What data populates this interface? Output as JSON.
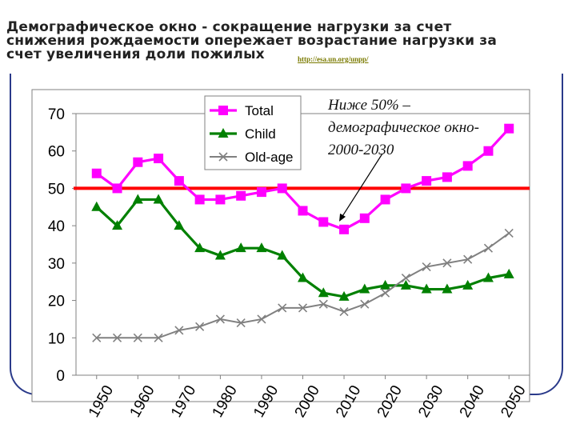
{
  "title": "Демографическое окно - сокращение нагрузки за счет снижения рождаемости опережает возрастание нагрузки за счет увеличения доли пожилых",
  "title_lines": [
    "Демографическое окно - сокращение нагрузки за счет",
    "снижения рождаемости опережает возрастание нагрузки за",
    "счет увеличения доли пожилых"
  ],
  "source_link": "http://esa.un.org/unpp/",
  "annotation": "Ниже 50% –\nдемографическое окно-\n2000-2030",
  "colors": {
    "total": "#ff00ff",
    "child": "#008000",
    "old_age": "#808080",
    "threshold": "#ff0000",
    "frame": "#2a3a8a"
  },
  "chart_data": {
    "type": "line",
    "x": [
      1950,
      1955,
      1960,
      1965,
      1970,
      1975,
      1980,
      1985,
      1990,
      1995,
      2000,
      2005,
      2010,
      2015,
      2020,
      2025,
      2030,
      2035,
      2040,
      2045,
      2050
    ],
    "series": [
      {
        "name": "Total",
        "marker": "square",
        "values": [
          54,
          50,
          57,
          58,
          52,
          47,
          47,
          48,
          49,
          50,
          44,
          41,
          39,
          42,
          47,
          50,
          52,
          53,
          56,
          60,
          66
        ]
      },
      {
        "name": "Child",
        "marker": "triangle",
        "values": [
          45,
          40,
          47,
          47,
          40,
          34,
          32,
          34,
          34,
          32,
          26,
          22,
          21,
          23,
          24,
          24,
          23,
          23,
          24,
          26,
          27
        ]
      },
      {
        "name": "Old-age",
        "marker": "x",
        "values": [
          10,
          10,
          10,
          10,
          12,
          13,
          15,
          14,
          15,
          18,
          18,
          19,
          17,
          19,
          22,
          26,
          29,
          30,
          31,
          34,
          38
        ]
      }
    ],
    "threshold": {
      "value": 50,
      "label": ""
    },
    "ylim": [
      0,
      70
    ],
    "yticks": [
      0,
      10,
      20,
      30,
      40,
      50,
      60,
      70
    ],
    "xtick_labels": [
      "1950",
      "1960",
      "1970",
      "1980",
      "1990",
      "2000",
      "2010",
      "2020",
      "2030",
      "2040",
      "2050"
    ],
    "xtick_values": [
      1950,
      1960,
      1970,
      1980,
      1990,
      2000,
      2010,
      2020,
      2030,
      2040,
      2050
    ],
    "legend": [
      "Total",
      "Child",
      "Old-age"
    ],
    "legend_position": "top-left",
    "annotation_arrow_target": {
      "x": 2010,
      "y": 39
    },
    "xlabel": "",
    "ylabel": "",
    "grid": false
  }
}
